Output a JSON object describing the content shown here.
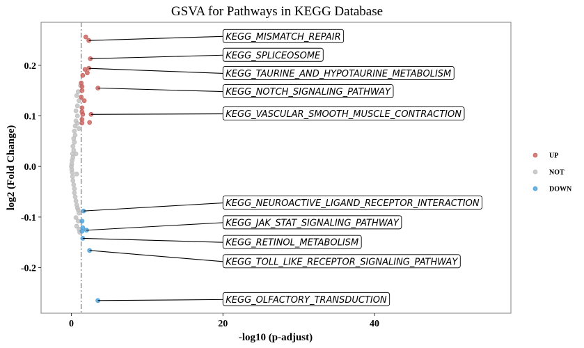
{
  "chart_data": {
    "type": "scatter",
    "title": "GSVA for Pathways in KEGG Database",
    "xlabel": "-log10 (p-adjust)",
    "ylabel": "log2 (Fold Change)",
    "xlim": [
      -4,
      58
    ],
    "ylim": [
      -0.29,
      0.285
    ],
    "xticks": [
      0,
      20,
      40
    ],
    "yticks": [
      -0.2,
      -0.1,
      0.0,
      0.1,
      0.2
    ],
    "ytick_labels": [
      "-0.2",
      "-0.1",
      "0.0",
      "0.1",
      "0.2"
    ],
    "threshold_x": 1.3,
    "grid": false,
    "legend_position": "right",
    "colors": {
      "UP": "#C9605C",
      "NOT": "#BEBEBE",
      "DOWN": "#4A9FD8"
    },
    "series": [
      {
        "name": "UP",
        "points": [
          [
            1.9,
            0.256
          ],
          [
            2.3,
            0.249
          ],
          [
            2.5,
            0.213
          ],
          [
            2.3,
            0.194
          ],
          [
            1.8,
            0.192
          ],
          [
            2.1,
            0.185
          ],
          [
            1.5,
            0.18
          ],
          [
            1.3,
            0.165
          ],
          [
            1.4,
            0.158
          ],
          [
            3.5,
            0.155
          ],
          [
            1.4,
            0.15
          ],
          [
            1.3,
            0.137
          ],
          [
            1.7,
            0.13
          ],
          [
            1.4,
            0.116
          ],
          [
            2.6,
            0.103
          ],
          [
            1.4,
            0.108
          ],
          [
            1.5,
            0.103
          ],
          [
            1.4,
            0.093
          ],
          [
            2.4,
            0.087
          ],
          [
            1.4,
            0.086
          ]
        ]
      },
      {
        "name": "NOT",
        "points": [
          [
            1.2,
            0.16
          ],
          [
            0.9,
            0.148
          ],
          [
            0.7,
            0.14
          ],
          [
            1.0,
            0.13
          ],
          [
            0.8,
            0.12
          ],
          [
            0.6,
            0.11
          ],
          [
            0.8,
            0.1
          ],
          [
            0.6,
            0.09
          ],
          [
            0.5,
            0.08
          ],
          [
            0.4,
            0.07
          ],
          [
            0.5,
            0.062
          ],
          [
            0.3,
            0.055
          ],
          [
            0.4,
            0.048
          ],
          [
            0.2,
            0.04
          ],
          [
            0.3,
            0.032
          ],
          [
            0.15,
            0.025
          ],
          [
            0.2,
            0.018
          ],
          [
            0.1,
            0.012
          ],
          [
            0.05,
            0.005
          ],
          [
            0.0,
            0.0
          ],
          [
            0.05,
            -0.006
          ],
          [
            0.1,
            -0.012
          ],
          [
            0.15,
            -0.02
          ],
          [
            0.2,
            -0.028
          ],
          [
            0.3,
            -0.036
          ],
          [
            0.4,
            -0.044
          ],
          [
            0.4,
            -0.052
          ],
          [
            0.5,
            -0.06
          ],
          [
            0.6,
            -0.068
          ],
          [
            0.7,
            -0.076
          ],
          [
            0.8,
            -0.082
          ],
          [
            0.9,
            -0.086
          ],
          [
            1.0,
            -0.092
          ],
          [
            0.6,
            -0.101
          ],
          [
            0.9,
            -0.108
          ],
          [
            0.7,
            -0.118
          ],
          [
            1.0,
            -0.124
          ],
          [
            1.1,
            -0.13
          ],
          [
            0.8,
            0.085
          ],
          [
            1.0,
            0.075
          ],
          [
            0.6,
            0.025
          ],
          [
            0.7,
            -0.015
          ]
        ]
      },
      {
        "name": "DOWN",
        "points": [
          [
            1.6,
            -0.088
          ],
          [
            1.4,
            -0.108
          ],
          [
            1.5,
            -0.121
          ],
          [
            2.0,
            -0.126
          ],
          [
            1.4,
            -0.128
          ],
          [
            1.5,
            -0.142
          ],
          [
            2.4,
            -0.166
          ],
          [
            3.5,
            -0.265
          ]
        ]
      }
    ],
    "labels": [
      {
        "text": "KEGG_MISMATCH_REPAIR",
        "point": [
          2.3,
          0.249
        ],
        "label_y": 0.257
      },
      {
        "text": "KEGG_SPLICEOSOME",
        "point": [
          2.5,
          0.213
        ],
        "label_y": 0.22
      },
      {
        "text": "KEGG_TAURINE_AND_HYPOTAURINE_METABOLISM",
        "point": [
          2.3,
          0.194
        ],
        "label_y": 0.184
      },
      {
        "text": "KEGG_NOTCH_SIGNALING_PATHWAY",
        "point": [
          3.5,
          0.155
        ],
        "label_y": 0.148
      },
      {
        "text": "KEGG_VASCULAR_SMOOTH_MUSCLE_CONTRACTION",
        "point": [
          2.6,
          0.103
        ],
        "label_y": 0.104
      },
      {
        "text": "KEGG_NEUROACTIVE_LIGAND_RECEPTOR_INTERACTION",
        "point": [
          1.6,
          -0.088
        ],
        "label_y": -0.072
      },
      {
        "text": "KEGG_JAK_STAT_SIGNALING_PATHWAY",
        "point": [
          2.0,
          -0.126
        ],
        "label_y": -0.111
      },
      {
        "text": "KEGG_RETINOL_METABOLISM",
        "point": [
          1.5,
          -0.142
        ],
        "label_y": -0.15
      },
      {
        "text": "KEGG_TOLL_LIKE_RECEPTOR_SIGNALING_PATHWAY",
        "point": [
          2.4,
          -0.166
        ],
        "label_y": -0.188
      },
      {
        "text": "KEGG_OLFACTORY_TRANSDUCTION",
        "point": [
          3.5,
          -0.265
        ],
        "label_y": -0.263
      }
    ],
    "label_x": 20,
    "legend": [
      "UP",
      "NOT",
      "DOWN"
    ]
  }
}
